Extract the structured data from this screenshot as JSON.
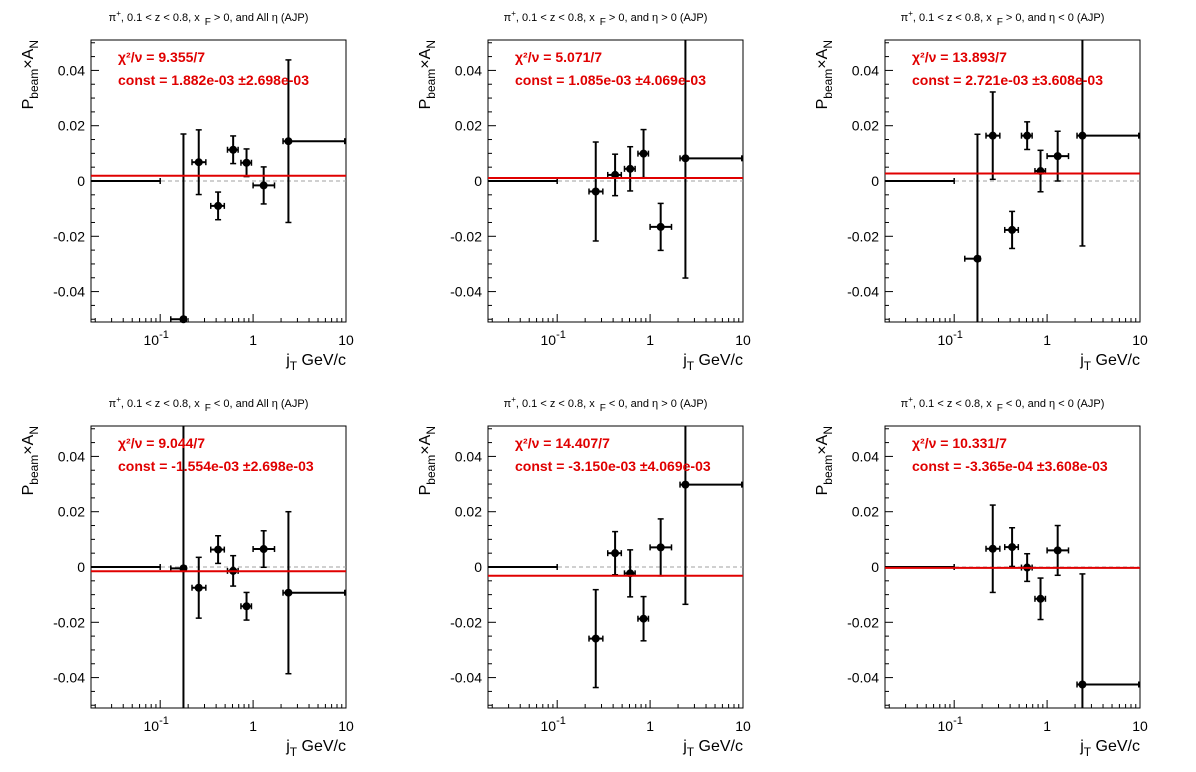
{
  "chart_data": [
    {
      "type": "scatter",
      "title": "π⁺, 0.1 < z < 0.8, x_F > 0, and All η (AJP)",
      "title_parts": {
        "pre": "π",
        "sup": "+",
        "mid": ", 0.1 < z < 0.8, x",
        "sub": "F",
        "post": " > 0, and All  η (AJP)"
      },
      "xlabel": "j_T GeV/c",
      "ylabel": "P_beam × A_N",
      "xscale": "log",
      "xlim": [
        0.018,
        10
      ],
      "ylim": [
        -0.051,
        0.051
      ],
      "yticks": [
        "0.04",
        "0.02",
        "0",
        "-0.02",
        "-0.04"
      ],
      "fit": {
        "chi2_label": "χ²/ν = 9.355/7",
        "const_label": "const = 1.882e-03  ±2.698e-03",
        "value": 0.001882
      },
      "points": [
        {
          "x": 0.065,
          "xlo": 0.01,
          "xhi": 0.1,
          "y": 0.0,
          "ey": 0.0
        },
        {
          "x": 0.178,
          "xlo": 0.13,
          "xhi": 0.19,
          "y": -0.05,
          "ey": 0.067
        },
        {
          "x": 0.26,
          "xlo": 0.22,
          "xhi": 0.31,
          "y": 0.0068,
          "ey": 0.0117
        },
        {
          "x": 0.42,
          "xlo": 0.35,
          "xhi": 0.49,
          "y": -0.009,
          "ey": 0.005
        },
        {
          "x": 0.61,
          "xlo": 0.53,
          "xhi": 0.69,
          "y": 0.0113,
          "ey": 0.005
        },
        {
          "x": 0.85,
          "xlo": 0.74,
          "xhi": 0.96,
          "y": 0.0066,
          "ey": 0.005
        },
        {
          "x": 1.3,
          "xlo": 1.0,
          "xhi": 1.7,
          "y": -0.0016,
          "ey": 0.0067
        },
        {
          "x": 2.4,
          "xlo": 2.1,
          "xhi": 9.7,
          "y": 0.0144,
          "ey": 0.0294
        }
      ]
    },
    {
      "type": "scatter",
      "title": "π⁺, 0.1 < z < 0.8, x_F > 0, and η > 0 (AJP)",
      "title_parts": {
        "pre": "π",
        "sup": "+",
        "mid": ", 0.1 < z < 0.8, x",
        "sub": "F",
        "post": " > 0, and  η > 0 (AJP)"
      },
      "xlabel": "j_T GeV/c",
      "ylabel": "P_beam × A_N",
      "xscale": "log",
      "xlim": [
        0.018,
        10
      ],
      "ylim": [
        -0.051,
        0.051
      ],
      "yticks": [
        "0.04",
        "0.02",
        "0",
        "-0.02",
        "-0.04"
      ],
      "fit": {
        "chi2_label": "χ²/ν = 5.071/7",
        "const_label": "const = 1.085e-03  ±4.069e-03",
        "value": 0.001085
      },
      "points": [
        {
          "x": 0.065,
          "xlo": 0.01,
          "xhi": 0.1,
          "y": 0.0,
          "ey": 0.0
        },
        {
          "x": 0.26,
          "xlo": 0.22,
          "xhi": 0.31,
          "y": -0.0038,
          "ey": 0.0179
        },
        {
          "x": 0.42,
          "xlo": 0.35,
          "xhi": 0.49,
          "y": 0.0022,
          "ey": 0.0075
        },
        {
          "x": 0.61,
          "xlo": 0.53,
          "xhi": 0.69,
          "y": 0.0044,
          "ey": 0.008
        },
        {
          "x": 0.85,
          "xlo": 0.74,
          "xhi": 0.96,
          "y": 0.0099,
          "ey": 0.0087
        },
        {
          "x": 1.3,
          "xlo": 1.0,
          "xhi": 1.7,
          "y": -0.0166,
          "ey": 0.0085
        },
        {
          "x": 2.4,
          "xlo": 2.1,
          "xhi": 9.7,
          "y": 0.0082,
          "ey": 0.0433
        }
      ]
    },
    {
      "type": "scatter",
      "title": "π⁺, 0.1 < z < 0.8, x_F > 0, and η < 0 (AJP)",
      "title_parts": {
        "pre": "π",
        "sup": "+",
        "mid": ", 0.1 < z < 0.8, x",
        "sub": "F",
        "post": " > 0, and  η < 0 (AJP)"
      },
      "xlabel": "j_T GeV/c",
      "ylabel": "P_beam × A_N",
      "xscale": "log",
      "xlim": [
        0.018,
        10
      ],
      "ylim": [
        -0.051,
        0.051
      ],
      "yticks": [
        "0.04",
        "0.02",
        "0",
        "-0.02",
        "-0.04"
      ],
      "fit": {
        "chi2_label": "χ²/ν = 13.893/7",
        "const_label": "const = 2.721e-03  ±3.608e-03",
        "value": 0.002721
      },
      "points": [
        {
          "x": 0.065,
          "xlo": 0.01,
          "xhi": 0.1,
          "y": 0.0,
          "ey": 0.0
        },
        {
          "x": 0.178,
          "xlo": 0.13,
          "xhi": 0.19,
          "y": -0.0281,
          "ey": 0.045
        },
        {
          "x": 0.26,
          "xlo": 0.22,
          "xhi": 0.31,
          "y": 0.0164,
          "ey": 0.0158
        },
        {
          "x": 0.42,
          "xlo": 0.35,
          "xhi": 0.49,
          "y": -0.0177,
          "ey": 0.0067
        },
        {
          "x": 0.61,
          "xlo": 0.53,
          "xhi": 0.69,
          "y": 0.0164,
          "ey": 0.005
        },
        {
          "x": 0.85,
          "xlo": 0.74,
          "xhi": 0.96,
          "y": 0.0036,
          "ey": 0.0075
        },
        {
          "x": 1.3,
          "xlo": 1.0,
          "xhi": 1.7,
          "y": 0.009,
          "ey": 0.009
        },
        {
          "x": 2.4,
          "xlo": 2.1,
          "xhi": 9.7,
          "y": 0.0164,
          "ey": 0.0399
        }
      ]
    },
    {
      "type": "scatter",
      "title": "π⁺, 0.1 < z < 0.8, x_F < 0, and All η (AJP)",
      "title_parts": {
        "pre": "π",
        "sup": "+",
        "mid": ", 0.1 < z < 0.8, x",
        "sub": "F",
        "post": " < 0, and All  η (AJP)"
      },
      "xlabel": "j_T GeV/c",
      "ylabel": "P_beam × A_N",
      "xscale": "log",
      "xlim": [
        0.018,
        10
      ],
      "ylim": [
        -0.051,
        0.051
      ],
      "yticks": [
        "0.04",
        "0.02",
        "0",
        "-0.02",
        "-0.04"
      ],
      "fit": {
        "chi2_label": "χ²/ν = 9.044/7",
        "const_label": "const = -1.554e-03  ±2.698e-03",
        "value": -0.001554
      },
      "points": [
        {
          "x": 0.065,
          "xlo": 0.01,
          "xhi": 0.1,
          "y": 0.0,
          "ey": 0.0
        },
        {
          "x": 0.178,
          "xlo": 0.13,
          "xhi": 0.19,
          "y": -0.0005,
          "ey": 0.06
        },
        {
          "x": 0.26,
          "xlo": 0.22,
          "xhi": 0.31,
          "y": -0.0075,
          "ey": 0.011
        },
        {
          "x": 0.42,
          "xlo": 0.35,
          "xhi": 0.49,
          "y": 0.0063,
          "ey": 0.005
        },
        {
          "x": 0.61,
          "xlo": 0.53,
          "xhi": 0.69,
          "y": -0.0014,
          "ey": 0.0055
        },
        {
          "x": 0.85,
          "xlo": 0.74,
          "xhi": 0.96,
          "y": -0.0142,
          "ey": 0.005
        },
        {
          "x": 1.3,
          "xlo": 1.0,
          "xhi": 1.7,
          "y": 0.0065,
          "ey": 0.0066
        },
        {
          "x": 2.4,
          "xlo": 2.1,
          "xhi": 9.7,
          "y": -0.0093,
          "ey": 0.0293
        }
      ]
    },
    {
      "type": "scatter",
      "title": "π⁺, 0.1 < z < 0.8, x_F < 0, and η > 0 (AJP)",
      "title_parts": {
        "pre": "π",
        "sup": "+",
        "mid": ", 0.1 < z < 0.8, x",
        "sub": "F",
        "post": " < 0, and  η > 0 (AJP)"
      },
      "xlabel": "j_T GeV/c",
      "ylabel": "P_beam × A_N",
      "xscale": "log",
      "xlim": [
        0.018,
        10
      ],
      "ylim": [
        -0.051,
        0.051
      ],
      "yticks": [
        "0.04",
        "0.02",
        "0",
        "-0.02",
        "-0.04"
      ],
      "fit": {
        "chi2_label": "χ²/ν = 14.407/7",
        "const_label": "const = -3.150e-03  ±4.069e-03",
        "value": -0.00315
      },
      "points": [
        {
          "x": 0.065,
          "xlo": 0.01,
          "xhi": 0.1,
          "y": 0.0,
          "ey": 0.0
        },
        {
          "x": 0.26,
          "xlo": 0.22,
          "xhi": 0.31,
          "y": -0.0259,
          "ey": 0.0177
        },
        {
          "x": 0.42,
          "xlo": 0.35,
          "xhi": 0.49,
          "y": 0.005,
          "ey": 0.0078
        },
        {
          "x": 0.61,
          "xlo": 0.53,
          "xhi": 0.69,
          "y": -0.0023,
          "ey": 0.0085
        },
        {
          "x": 0.85,
          "xlo": 0.74,
          "xhi": 0.96,
          "y": -0.0187,
          "ey": 0.008
        },
        {
          "x": 1.3,
          "xlo": 1.0,
          "xhi": 1.7,
          "y": 0.0071,
          "ey": 0.0103
        },
        {
          "x": 2.4,
          "xlo": 2.1,
          "xhi": 9.7,
          "y": 0.0298,
          "ey": 0.0433
        }
      ]
    },
    {
      "type": "scatter",
      "title": "π⁺, 0.1 < z < 0.8, x_F < 0, and η < 0 (AJP)",
      "title_parts": {
        "pre": "π",
        "sup": "+",
        "mid": ", 0.1 < z < 0.8, x",
        "sub": "F",
        "post": " < 0, and  η < 0 (AJP)"
      },
      "xlabel": "j_T GeV/c",
      "ylabel": "P_beam × A_N",
      "xscale": "log",
      "xlim": [
        0.018,
        10
      ],
      "ylim": [
        -0.051,
        0.051
      ],
      "yticks": [
        "0.04",
        "0.02",
        "0",
        "-0.02",
        "-0.04"
      ],
      "fit": {
        "chi2_label": "χ²/ν = 10.331/7",
        "const_label": "const = -3.365e-04  ±3.608e-03",
        "value": -0.0003365
      },
      "points": [
        {
          "x": 0.065,
          "xlo": 0.01,
          "xhi": 0.1,
          "y": 0.0,
          "ey": 0.0
        },
        {
          "x": 0.26,
          "xlo": 0.22,
          "xhi": 0.31,
          "y": 0.0066,
          "ey": 0.0158
        },
        {
          "x": 0.42,
          "xlo": 0.35,
          "xhi": 0.49,
          "y": 0.0072,
          "ey": 0.007
        },
        {
          "x": 0.61,
          "xlo": 0.53,
          "xhi": 0.69,
          "y": -0.0002,
          "ey": 0.005
        },
        {
          "x": 0.85,
          "xlo": 0.74,
          "xhi": 0.96,
          "y": -0.0115,
          "ey": 0.0075
        },
        {
          "x": 1.3,
          "xlo": 1.0,
          "xhi": 1.7,
          "y": 0.006,
          "ey": 0.009
        },
        {
          "x": 2.4,
          "xlo": 2.1,
          "xhi": 9.7,
          "y": -0.0425,
          "ey": 0.04
        }
      ]
    }
  ],
  "axis_text": {
    "xlabel_main": "j",
    "xlabel_sub": "T",
    "xlabel_unit": " GeV/c",
    "ylabel_p": "P",
    "ylabel_sub": "beam",
    "ylabel_times": "×A",
    "ylabel_n": "N",
    "x_tick_base": "10",
    "x_tick_exp": "-1",
    "x_tick_one": "1",
    "x_tick_ten": "10"
  },
  "colors": {
    "fit": "#e00000",
    "marker": "#000000",
    "zero_line": "#a0a0a0"
  }
}
